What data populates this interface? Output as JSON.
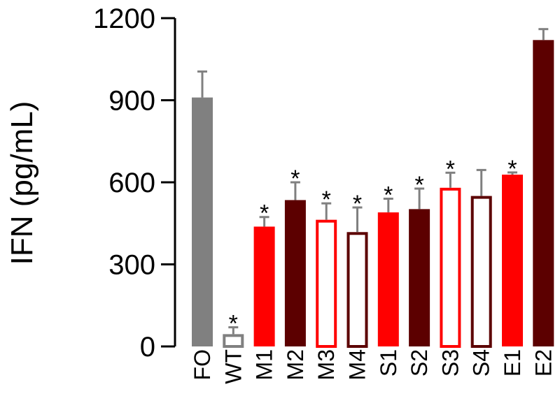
{
  "chart_data": {
    "type": "bar",
    "title": "",
    "xlabel": "",
    "ylabel": "IFN (pg/mL)",
    "ylim": [
      0,
      1200
    ],
    "yticks": [
      0,
      300,
      600,
      900,
      1200
    ],
    "grid": false,
    "categories": [
      "FO",
      "WT",
      "M1",
      "M2",
      "M3",
      "M4",
      "S1",
      "S2",
      "S3",
      "S4",
      "E1",
      "E2"
    ],
    "values": [
      910,
      45,
      438,
      535,
      463,
      418,
      490,
      502,
      580,
      550,
      628,
      1120
    ],
    "errors": [
      95,
      25,
      35,
      65,
      60,
      90,
      50,
      75,
      55,
      95,
      8,
      40
    ],
    "significant": [
      false,
      true,
      true,
      true,
      true,
      true,
      true,
      true,
      true,
      false,
      true,
      false
    ],
    "styles": [
      {
        "fill": "#808080",
        "stroke": "#808080"
      },
      {
        "fill": "#ffffff",
        "stroke": "#808080"
      },
      {
        "fill": "#ff0000",
        "stroke": "#ff0000"
      },
      {
        "fill": "#5c0000",
        "stroke": "#5c0000"
      },
      {
        "fill": "#ffffff",
        "stroke": "#ff0000"
      },
      {
        "fill": "#ffffff",
        "stroke": "#5c0000"
      },
      {
        "fill": "#ff0000",
        "stroke": "#ff0000"
      },
      {
        "fill": "#5c0000",
        "stroke": "#5c0000"
      },
      {
        "fill": "#ffffff",
        "stroke": "#ff0000"
      },
      {
        "fill": "#ffffff",
        "stroke": "#5c0000"
      },
      {
        "fill": "#ff0000",
        "stroke": "#ff0000"
      },
      {
        "fill": "#5c0000",
        "stroke": "#5c0000"
      }
    ],
    "error_bar_color": "#808080",
    "significance_marker": "*"
  }
}
